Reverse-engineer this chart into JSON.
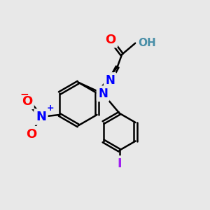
{
  "bg_color": "#e8e8e8",
  "bond_color": "#000000",
  "bond_width": 1.8,
  "dbl_off": 0.07,
  "atom_colors": {
    "O": "#ff0000",
    "N": "#0000ff",
    "I": "#a020f0",
    "OH": "#4a8fa8"
  }
}
